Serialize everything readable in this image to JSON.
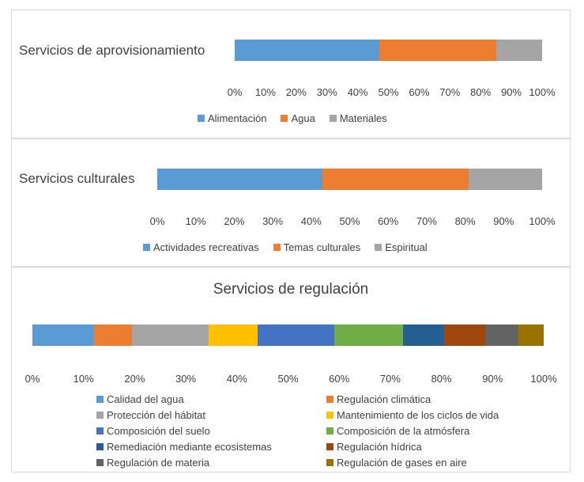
{
  "chart_data": [
    {
      "type": "bar",
      "stacked": "100%",
      "orientation": "horizontal",
      "title": "Servicios de aprovisionamiento",
      "xlim": [
        0,
        100
      ],
      "ticks": [
        "0%",
        "10%",
        "20%",
        "30%",
        "40%",
        "50%",
        "60%",
        "70%",
        "80%",
        "90%",
        "100%"
      ],
      "legend_position": "bottom",
      "series": [
        {
          "name": "Alimentación",
          "value": 47,
          "color": "#5b9bd5"
        },
        {
          "name": "Agua",
          "value": 38,
          "color": "#ed7d31"
        },
        {
          "name": "Materiales",
          "value": 15,
          "color": "#a5a5a5"
        }
      ]
    },
    {
      "type": "bar",
      "stacked": "100%",
      "orientation": "horizontal",
      "title": "Servicios culturales",
      "xlim": [
        0,
        100
      ],
      "ticks": [
        "0%",
        "10%",
        "20%",
        "30%",
        "40%",
        "50%",
        "60%",
        "70%",
        "80%",
        "90%",
        "100%"
      ],
      "legend_position": "bottom",
      "series": [
        {
          "name": "Actividades recreativas",
          "value": 43,
          "color": "#5b9bd5"
        },
        {
          "name": "Temas culturales",
          "value": 38,
          "color": "#ed7d31"
        },
        {
          "name": "Espiritual",
          "value": 19,
          "color": "#a5a5a5"
        }
      ]
    },
    {
      "type": "bar",
      "stacked": "100%",
      "orientation": "horizontal",
      "title": "Servicios de regulación",
      "xlim": [
        0,
        100
      ],
      "ticks": [
        "0%",
        "10%",
        "20%",
        "30%",
        "40%",
        "50%",
        "60%",
        "70%",
        "80%",
        "90%",
        "100%"
      ],
      "legend_position": "bottom",
      "series": [
        {
          "name": "Calidad del agua",
          "value": 12,
          "color": "#5b9bd5"
        },
        {
          "name": "Regulación climática",
          "value": 7.5,
          "color": "#ed7d31"
        },
        {
          "name": "Protección del hábitat",
          "value": 15,
          "color": "#a5a5a5"
        },
        {
          "name": "Mantenimiento de los ciclos de vida",
          "value": 9.5,
          "color": "#ffc000"
        },
        {
          "name": "Composición del suelo",
          "value": 15,
          "color": "#4472c4"
        },
        {
          "name": "Composición de la atmósfera",
          "value": 13.5,
          "color": "#70ad47"
        },
        {
          "name": "Remediación mediante ecosistemas",
          "value": 8,
          "color": "#255e91"
        },
        {
          "name": "Regulación hídrica",
          "value": 8,
          "color": "#9e480e"
        },
        {
          "name": "Regulación de materia",
          "value": 6.5,
          "color": "#636363"
        },
        {
          "name": "Regulación de gases en aire",
          "value": 5,
          "color": "#997300"
        }
      ]
    }
  ]
}
